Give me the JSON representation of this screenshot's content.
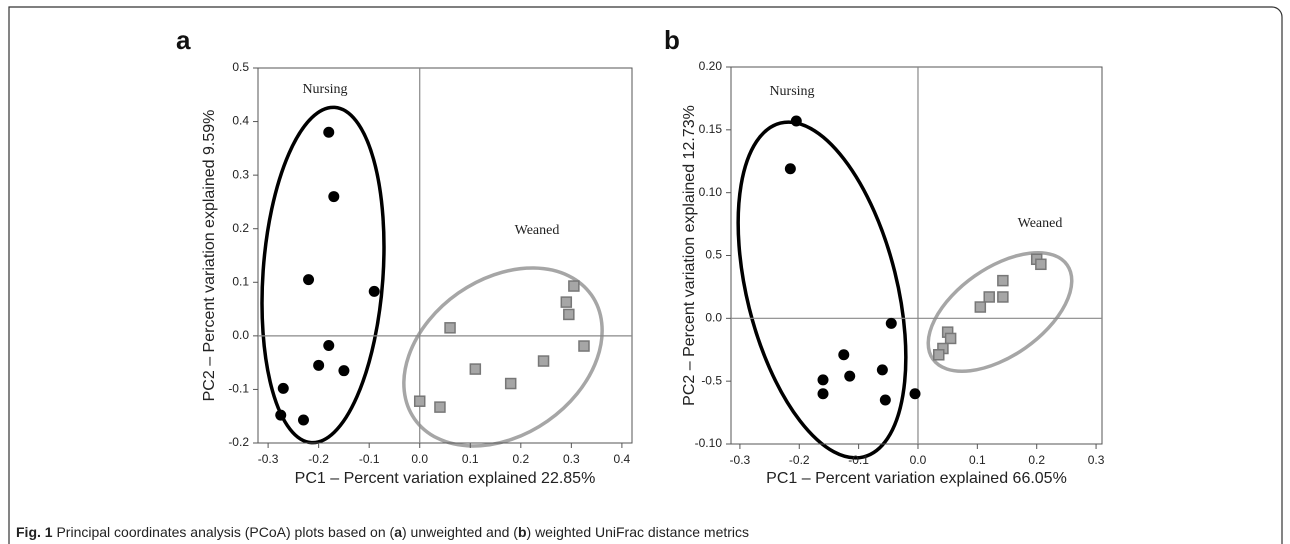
{
  "chart_data": [
    {
      "type": "scatter",
      "panel": "a",
      "x_label": "PC1 – Percent variation explained 22.85%",
      "y_label": "PC2 – Percent variation explained 9.59%",
      "xlim": [
        -0.32,
        0.42
      ],
      "ylim": [
        -0.2,
        0.5
      ],
      "xticks": [
        -0.3,
        -0.2,
        -0.1,
        {
          "value": 0,
          "label": "0.0"
        },
        0.1,
        0.2,
        0.3,
        0.4
      ],
      "yticks": [
        -0.2,
        -0.1,
        {
          "value": 0,
          "label": "0.0"
        },
        0.1,
        0.2,
        0.3,
        0.4,
        0.5
      ],
      "series": [
        {
          "name": "Nursing",
          "color": "#000000",
          "marker": "circle",
          "x": [
            -0.18,
            -0.17,
            -0.22,
            -0.09,
            -0.18,
            -0.2,
            -0.15,
            -0.27,
            -0.275,
            -0.23
          ],
          "y": [
            0.38,
            0.26,
            0.105,
            0.083,
            -0.018,
            -0.055,
            -0.065,
            -0.098,
            -0.148,
            -0.157
          ]
        },
        {
          "name": "Weaned",
          "color": "#a6a6a6",
          "marker": "square",
          "x": [
            0.06,
            0.0,
            0.04,
            0.11,
            0.18,
            0.245,
            0.29,
            0.295,
            0.305,
            0.325
          ],
          "y": [
            0.015,
            -0.122,
            -0.133,
            -0.062,
            -0.089,
            -0.047,
            0.063,
            0.04,
            0.093,
            -0.019
          ]
        }
      ]
    },
    {
      "type": "scatter",
      "panel": "b",
      "x_label": "PC1 – Percent variation explained 66.05%",
      "y_label": "PC2 – Percent variation explained 12.73%",
      "xlim": [
        -0.315,
        0.31
      ],
      "ylim": [
        -0.1,
        0.2
      ],
      "xticks": [
        -0.3,
        -0.2,
        -0.1,
        {
          "value": 0,
          "label": "0.0"
        },
        0.1,
        0.2,
        0.3
      ],
      "yticks": [
        {
          "value": -0.1,
          "label": "-0.10"
        },
        {
          "value": -0.05,
          "label": "-0.5"
        },
        {
          "value": 0,
          "label": "0.0"
        },
        {
          "value": 0.05,
          "label": "0.5"
        },
        {
          "value": 0.1,
          "label": "0.10"
        },
        0.15,
        {
          "value": 0.2,
          "label": "0.20"
        }
      ],
      "series": [
        {
          "name": "Nursing",
          "color": "#000000",
          "marker": "circle",
          "x": [
            -0.205,
            -0.215,
            -0.045,
            -0.125,
            -0.115,
            -0.16,
            -0.16,
            -0.06,
            -0.055,
            -0.005
          ],
          "y": [
            0.157,
            0.119,
            -0.004,
            -0.029,
            -0.046,
            -0.049,
            -0.06,
            -0.041,
            -0.065,
            -0.06
          ]
        },
        {
          "name": "Weaned",
          "color": "#a6a6a6",
          "marker": "square",
          "x": [
            0.2,
            0.207,
            0.143,
            0.143,
            0.12,
            0.105,
            0.05,
            0.055,
            0.042,
            0.035
          ],
          "y": [
            0.047,
            0.043,
            0.03,
            0.017,
            0.017,
            0.009,
            -0.011,
            -0.016,
            -0.024,
            -0.029
          ]
        }
      ]
    }
  ],
  "caption": {
    "segments": [
      {
        "text": "Fig. 1",
        "bold": true
      },
      {
        "text": " Principal coordinates analysis (PCoA) plots based on (",
        "bold": false
      },
      {
        "text": "a",
        "bold": true
      },
      {
        "text": ") unweighted and (",
        "bold": false
      },
      {
        "text": "b",
        "bold": true
      },
      {
        "text": ") weighted UniFrac distance metrics",
        "bold": false
      }
    ]
  }
}
